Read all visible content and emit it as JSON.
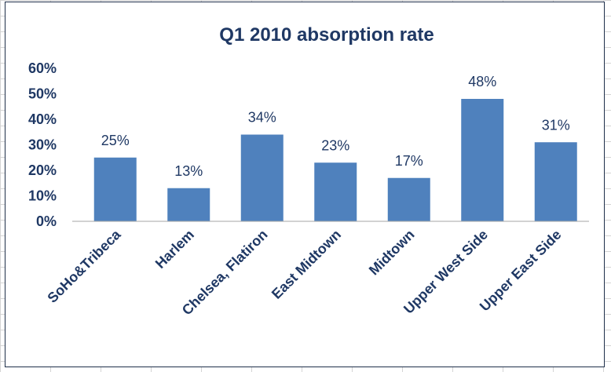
{
  "chart_data": {
    "type": "bar",
    "title": "Q1 2010 absorption rate",
    "xlabel": "",
    "ylabel": "",
    "categories": [
      "SoHo&Tribeca",
      "Harlem",
      "Chelsea, Flatiron",
      "East Midtown",
      "Midtown",
      "Upper West Side",
      "Upper East Side"
    ],
    "values": [
      25,
      13,
      34,
      23,
      17,
      48,
      31
    ],
    "data_labels": [
      "25%",
      "13%",
      "34%",
      "23%",
      "17%",
      "48%",
      "31%"
    ],
    "yticks": [
      "0%",
      "10%",
      "20%",
      "30%",
      "40%",
      "50%",
      "60%"
    ],
    "ylim": [
      0,
      60
    ],
    "grid": false,
    "legend": "none",
    "bar_color": "#4f81bd"
  }
}
